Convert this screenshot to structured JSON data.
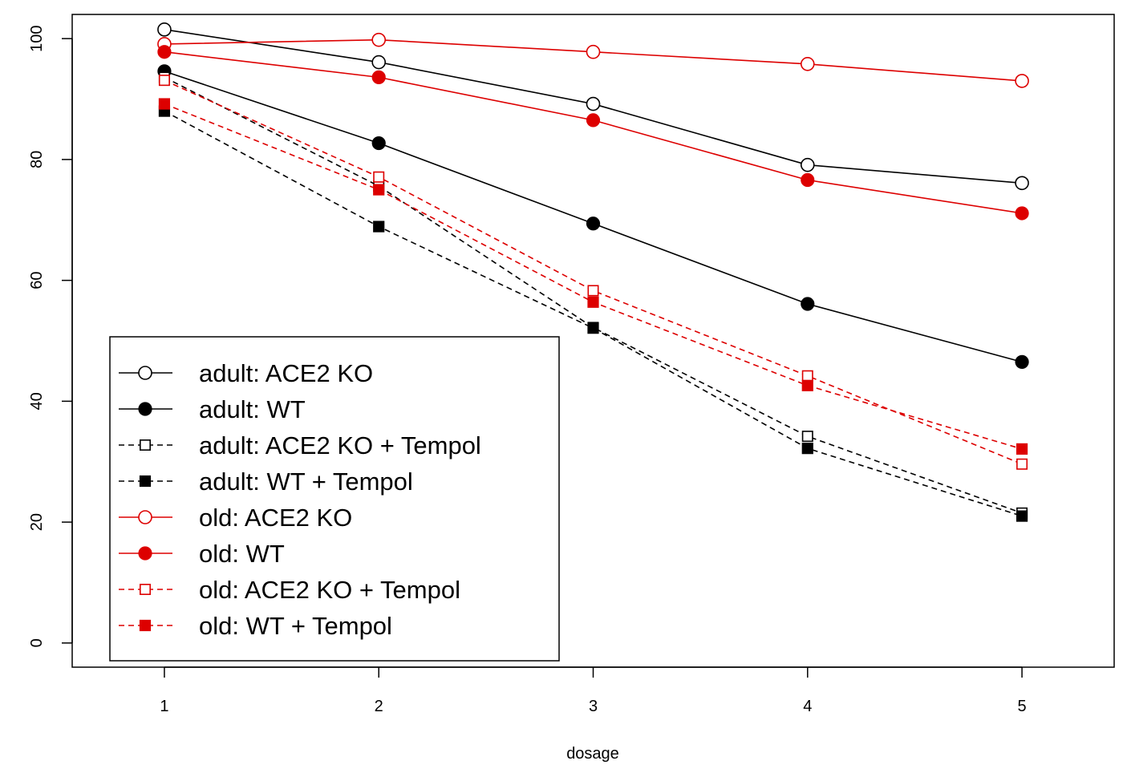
{
  "chart_data": {
    "type": "line",
    "title": "",
    "xlabel": "dosage",
    "ylabel": "",
    "x": [
      1,
      2,
      3,
      4,
      5
    ],
    "xlim": [
      0.57,
      5.43
    ],
    "ylim": [
      -4,
      104
    ],
    "x_ticks": [
      "1",
      "2",
      "3",
      "4",
      "5"
    ],
    "y_ticks": [
      "0",
      "20",
      "40",
      "60",
      "80",
      "100"
    ],
    "grid": false,
    "legend_position": "bottom-left",
    "series": [
      {
        "name": "adult: ACE2 KO",
        "color": "#000000",
        "line_style": "solid",
        "marker": "open-circle",
        "values": [
          101.5,
          96.1,
          89.2,
          79.1,
          76.1
        ]
      },
      {
        "name": "adult: WT",
        "color": "#000000",
        "line_style": "solid",
        "marker": "filled-circle",
        "values": [
          94.6,
          82.7,
          69.4,
          56.1,
          46.5
        ]
      },
      {
        "name": "adult: ACE2 KO + Tempol",
        "color": "#000000",
        "line_style": "dashed",
        "marker": "open-square",
        "values": [
          93.6,
          75.6,
          52.2,
          34.2,
          21.5
        ]
      },
      {
        "name": "adult: WT + Tempol",
        "color": "#000000",
        "line_style": "dashed",
        "marker": "filled-square",
        "values": [
          88.0,
          68.9,
          52.1,
          32.2,
          21.0
        ]
      },
      {
        "name": "old: ACE2 KO",
        "color": "#dd0000",
        "line_style": "solid",
        "marker": "open-circle",
        "values": [
          99.1,
          99.8,
          97.8,
          95.8,
          93.0
        ]
      },
      {
        "name": "old: WT",
        "color": "#dd0000",
        "line_style": "solid",
        "marker": "filled-circle",
        "values": [
          97.8,
          93.6,
          86.5,
          76.6,
          71.1
        ]
      },
      {
        "name": "old: ACE2 KO + Tempol",
        "color": "#dd0000",
        "line_style": "dashed",
        "marker": "open-square",
        "values": [
          93.1,
          77.1,
          58.3,
          44.2,
          29.6
        ]
      },
      {
        "name": "old: WT + Tempol",
        "color": "#dd0000",
        "line_style": "dashed",
        "marker": "filled-square",
        "values": [
          89.2,
          75.0,
          56.4,
          42.6,
          32.1
        ]
      }
    ]
  }
}
